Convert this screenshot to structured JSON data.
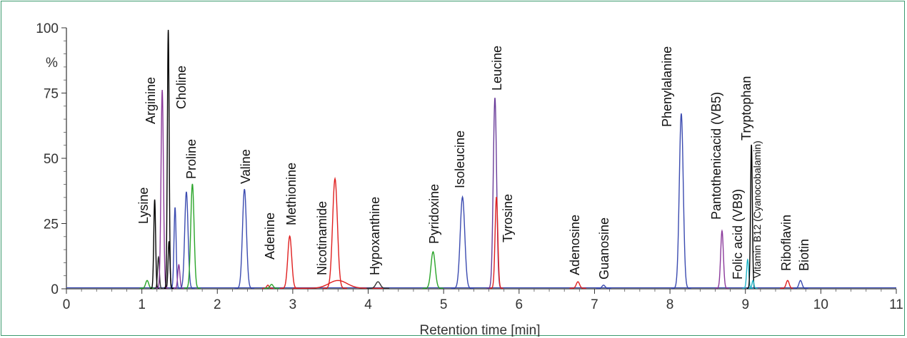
{
  "chart_data": {
    "type": "line",
    "title": "",
    "xlabel": "Retention time [min]",
    "ylabel": "%",
    "xlim": [
      0,
      11
    ],
    "ylim": [
      0,
      100
    ],
    "x_ticks": [
      0,
      1,
      2,
      3,
      4,
      5,
      6,
      7,
      8,
      9,
      10,
      11
    ],
    "y_ticks": [
      0,
      25,
      50,
      75,
      100
    ],
    "grid": false,
    "legend": "none",
    "peaks": [
      {
        "name": "Lysine",
        "rt": 1.17,
        "height": 34,
        "width": 0.012,
        "color": "#000000"
      },
      {
        "name": "Arginine",
        "rt": 1.27,
        "height": 76,
        "width": 0.016,
        "color": "#8b3a9b"
      },
      {
        "name": "Choline",
        "rt": 1.35,
        "height": 99,
        "width": 0.012,
        "color": "#000000"
      },
      {
        "name": "Proline",
        "rt": 1.67,
        "height": 40,
        "width": 0.022,
        "color": "#2aa52a"
      },
      {
        "name": "Valine",
        "rt": 2.36,
        "height": 38,
        "width": 0.026,
        "color": "#3b4bb0"
      },
      {
        "name": "Adenine",
        "rt": 2.72,
        "height": 1.5,
        "width": 0.02,
        "color": "#2aa52a"
      },
      {
        "name": "Methionine",
        "rt": 2.96,
        "height": 20,
        "width": 0.026,
        "color": "#e02020"
      },
      {
        "name": "Nicotinamide",
        "rt": 3.56,
        "height": 42,
        "width": 0.032,
        "color": "#e02020"
      },
      {
        "name": "Hypoxanthine",
        "rt": 4.13,
        "height": 2.5,
        "width": 0.03,
        "color": "#333333"
      },
      {
        "name": "Pyridoxine",
        "rt": 4.86,
        "height": 14,
        "width": 0.028,
        "color": "#2aa52a"
      },
      {
        "name": "Isoleucine",
        "rt": 5.25,
        "height": 35,
        "width": 0.03,
        "color": "#3b4bb0"
      },
      {
        "name": "Leucine",
        "rt": 5.68,
        "height": 73,
        "width": 0.022,
        "color": "#6a3d9a"
      },
      {
        "name": "Tyrosine",
        "rt": 5.7,
        "height": 35,
        "width": 0.018,
        "color": "#e02020"
      },
      {
        "name": "Adenosine",
        "rt": 6.78,
        "height": 2.5,
        "width": 0.022,
        "color": "#e02020"
      },
      {
        "name": "Guanosine",
        "rt": 7.12,
        "height": 1.2,
        "width": 0.02,
        "color": "#3b4bb0"
      },
      {
        "name": "Phenylalanine",
        "rt": 8.15,
        "height": 67,
        "width": 0.026,
        "color": "#3b4bb0"
      },
      {
        "name": "Pantothenicacid (VB5)",
        "rt": 8.69,
        "height": 22,
        "width": 0.018,
        "color": "#8b3a9b"
      },
      {
        "name": "Folic acid (VB9)",
        "rt": 9.03,
        "height": 11,
        "width": 0.014,
        "color": "#1fb5c8"
      },
      {
        "name": "Tryptophan",
        "rt": 9.08,
        "height": 55,
        "width": 0.012,
        "color": "#000000"
      },
      {
        "name": "Vitamin B12",
        "rt": 9.1,
        "height": 3,
        "width": 0.012,
        "color": "#1fb5c8"
      },
      {
        "name": "Riboflavin",
        "rt": 9.56,
        "height": 3,
        "width": 0.02,
        "color": "#e02020"
      },
      {
        "name": "Biotin",
        "rt": 9.73,
        "height": 3,
        "width": 0.02,
        "color": "#3b4bb0"
      }
    ],
    "minor_peaks": [
      {
        "rt": 1.07,
        "height": 3,
        "width": 0.02,
        "color": "#2aa52a"
      },
      {
        "rt": 1.22,
        "height": 12,
        "width": 0.012,
        "color": "#333333"
      },
      {
        "rt": 1.36,
        "height": 18,
        "width": 0.012,
        "color": "#000000"
      },
      {
        "rt": 1.44,
        "height": 31,
        "width": 0.014,
        "color": "#3b4bb0"
      },
      {
        "rt": 1.49,
        "height": 9,
        "width": 0.014,
        "color": "#8b3a9b"
      },
      {
        "rt": 1.59,
        "height": 37,
        "width": 0.022,
        "color": "#3b4bb0"
      },
      {
        "rt": 2.67,
        "height": 1.2,
        "width": 0.015,
        "color": "#e02020"
      },
      {
        "rt": 3.6,
        "height": 3,
        "width": 0.12,
        "color": "#e02020"
      }
    ]
  },
  "labels": {
    "lysine": "Lysine",
    "arginine": "Arginine",
    "choline": "Choline",
    "proline": "Proline",
    "valine": "Valine",
    "adenine": "Adenine",
    "methionine": "Methionine",
    "nicotinamide": "Nicotinamide",
    "hypoxanthine": "Hypoxanthine",
    "pyridoxine": "Pyridoxine",
    "isoleucine": "Isoleucine",
    "leucine": "Leucine",
    "tyrosine": "Tyrosine",
    "adenosine": "Adenosine",
    "guanosine": "Guanosine",
    "phenylalanine": "Phenylalanine",
    "pantothenicacid": "Pantothenicacid (VB5)",
    "folic_acid": "Folic acid (VB9)",
    "tryptophan": "Tryptophan",
    "vitamin_b12": "Vitamin B12 (Cyanocobalamin)",
    "riboflavin": "Riboflavin",
    "biotin": "Biotin"
  }
}
